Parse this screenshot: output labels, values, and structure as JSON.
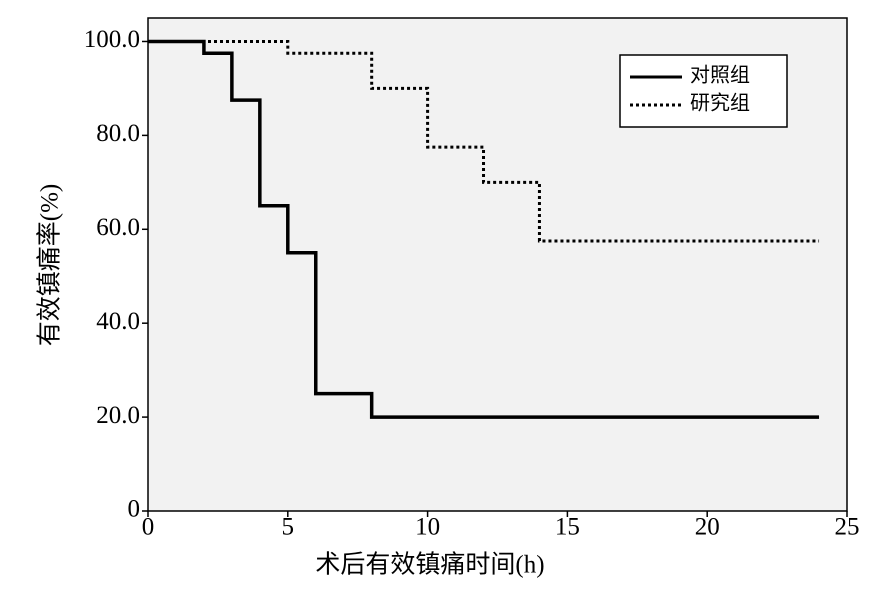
{
  "chart_data": {
    "type": "step",
    "xlabel": "术后有效镇痛时间(h)",
    "ylabel": "有效镇痛率(%)",
    "series": [
      {
        "name": "对照组",
        "color": "#000000",
        "dash": "solid",
        "x": [
          0,
          2,
          3,
          4,
          5,
          6,
          8,
          24
        ],
        "values": [
          100,
          97.5,
          87.5,
          65,
          55,
          25,
          20,
          20
        ]
      },
      {
        "name": "研究组",
        "color": "#000000",
        "dash": "dotted",
        "x": [
          0,
          5,
          8,
          10,
          12,
          14,
          24
        ],
        "values": [
          100,
          97.5,
          90,
          77.5,
          70,
          57.5,
          57.5
        ]
      }
    ],
    "xlim": [
      0,
      25
    ],
    "xticks": [
      0,
      5,
      10,
      15,
      20,
      25
    ],
    "ylim": [
      0,
      105
    ],
    "yticks": [
      0,
      {
        "value": 20,
        "label": "20.0"
      },
      {
        "value": 40,
        "label": "40.0"
      },
      {
        "value": 60,
        "label": "60.0"
      },
      {
        "value": 80,
        "label": "80.0"
      },
      {
        "value": 100,
        "label": "100.0"
      }
    ],
    "legend": "upper right"
  }
}
